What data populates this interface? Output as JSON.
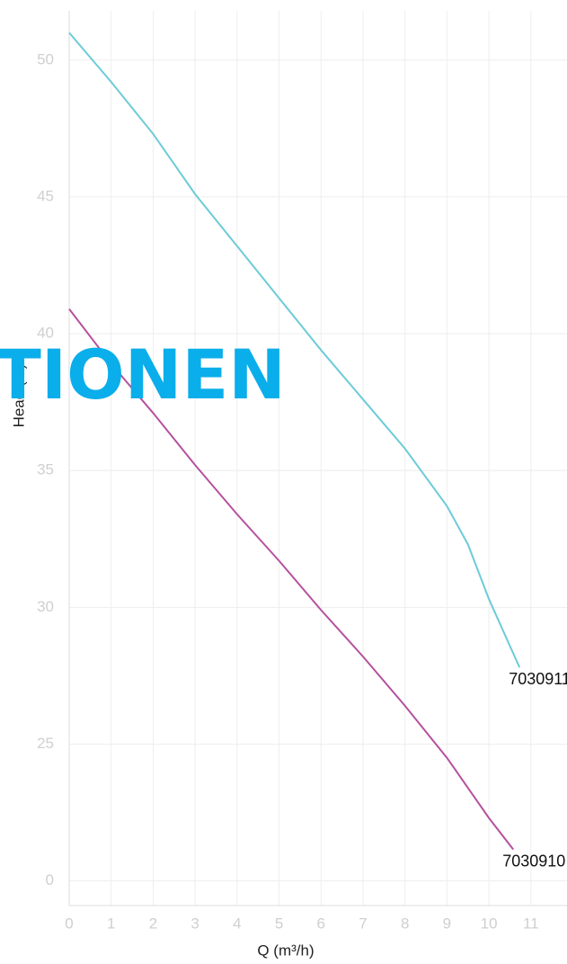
{
  "chart_data": {
    "type": "line",
    "xlabel": "Q (m³/h)",
    "ylabel": "Head (m)",
    "watermark": "TIONEN",
    "xlim": [
      0,
      11.86
    ],
    "ylim": [
      19.1,
      51.8
    ],
    "xticks": [
      0,
      1,
      2,
      3,
      4,
      5,
      6,
      7,
      8,
      9,
      10,
      11
    ],
    "yticks": [
      {
        "value": 20,
        "label": "0"
      },
      25,
      30,
      35,
      40,
      45,
      50
    ],
    "grid": true,
    "series": [
      {
        "name": "7030911",
        "color": "#6ccbd8",
        "x": [
          0,
          1,
          2,
          3,
          4,
          5,
          6,
          7,
          8,
          9,
          9.5,
          10,
          10.73
        ],
        "values": [
          51,
          49.2,
          47.3,
          45.1,
          43.2,
          41.3,
          39.4,
          37.6,
          35.8,
          33.7,
          32.3,
          30.3,
          27.8
        ]
      },
      {
        "name": "7030910",
        "color": "#b5519f",
        "x": [
          0,
          1,
          2,
          3,
          4,
          5,
          6,
          7,
          8,
          9,
          10,
          10.58
        ],
        "values": [
          40.9,
          38.9,
          37.1,
          35.2,
          33.4,
          31.7,
          29.9,
          28.2,
          26.4,
          24.5,
          22.3,
          21.15
        ]
      }
    ]
  }
}
